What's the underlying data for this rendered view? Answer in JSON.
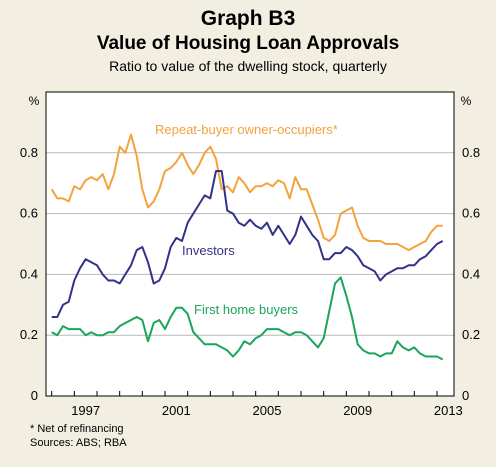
{
  "header": {
    "graph_label": "Graph B3",
    "title": "Value of Housing Loan Approvals",
    "subtitle": "Ratio to value of the dwelling stock, quarterly"
  },
  "footer": {
    "note": "*    Net of refinancing",
    "sources": "Sources: ABS; RBA"
  },
  "colors": {
    "background": "#f3eee2",
    "plot_background": "#ffffff",
    "repeat_buyer": "#f4a23c",
    "investors": "#33318a",
    "first_home": "#17a65a"
  },
  "chart_data": {
    "type": "line",
    "title": "Value of Housing Loan Approvals",
    "subtitle": "Ratio to value of the dwelling stock, quarterly",
    "ylabel_left": "%",
    "ylabel_right": "%",
    "ylim": [
      0,
      1.0
    ],
    "yticks": [
      0,
      0.2,
      0.4,
      0.6,
      0.8
    ],
    "ytick_labels": [
      "0",
      "0.2",
      "0.4",
      "0.6",
      "0.8"
    ],
    "xlim": [
      1995.75,
      2013.75
    ],
    "xticks": [
      1997,
      2001,
      2005,
      2009,
      2013
    ],
    "xtick_labels": [
      "1997",
      "2001",
      "2005",
      "2009",
      "2013"
    ],
    "grid": true,
    "legend": "inline labels",
    "series": [
      {
        "name": "Repeat-buyer owner-occupiers*",
        "color": "#f4a23c",
        "x": [
          1996.0,
          1996.25,
          1996.5,
          1996.75,
          1997.0,
          1997.25,
          1997.5,
          1997.75,
          1998.0,
          1998.25,
          1998.5,
          1998.75,
          1999.0,
          1999.25,
          1999.5,
          1999.75,
          2000.0,
          2000.25,
          2000.5,
          2000.75,
          2001.0,
          2001.25,
          2001.5,
          2001.75,
          2002.0,
          2002.25,
          2002.5,
          2002.75,
          2003.0,
          2003.25,
          2003.5,
          2003.75,
          2004.0,
          2004.25,
          2004.5,
          2004.75,
          2005.0,
          2005.25,
          2005.5,
          2005.75,
          2006.0,
          2006.25,
          2006.5,
          2006.75,
          2007.0,
          2007.25,
          2007.5,
          2007.75,
          2008.0,
          2008.25,
          2008.5,
          2008.75,
          2009.0,
          2009.25,
          2009.5,
          2009.75,
          2010.0,
          2010.25,
          2010.5,
          2010.75,
          2011.0,
          2011.25,
          2011.5,
          2011.75,
          2012.0,
          2012.25,
          2012.5,
          2012.75,
          2013.0,
          2013.25
        ],
        "values": [
          0.68,
          0.65,
          0.65,
          0.64,
          0.69,
          0.68,
          0.71,
          0.72,
          0.71,
          0.73,
          0.68,
          0.73,
          0.82,
          0.8,
          0.86,
          0.79,
          0.68,
          0.62,
          0.64,
          0.68,
          0.74,
          0.75,
          0.77,
          0.8,
          0.76,
          0.73,
          0.76,
          0.8,
          0.82,
          0.78,
          0.68,
          0.69,
          0.67,
          0.72,
          0.7,
          0.67,
          0.69,
          0.69,
          0.7,
          0.69,
          0.71,
          0.7,
          0.65,
          0.72,
          0.68,
          0.68,
          0.63,
          0.58,
          0.52,
          0.51,
          0.53,
          0.6,
          0.61,
          0.62,
          0.56,
          0.52,
          0.51,
          0.51,
          0.51,
          0.5,
          0.5,
          0.5,
          0.49,
          0.48,
          0.49,
          0.5,
          0.51,
          0.54,
          0.56,
          0.56
        ]
      },
      {
        "name": "Investors",
        "color": "#33318a",
        "x": [
          1996.0,
          1996.25,
          1996.5,
          1996.75,
          1997.0,
          1997.25,
          1997.5,
          1997.75,
          1998.0,
          1998.25,
          1998.5,
          1998.75,
          1999.0,
          1999.25,
          1999.5,
          1999.75,
          2000.0,
          2000.25,
          2000.5,
          2000.75,
          2001.0,
          2001.25,
          2001.5,
          2001.75,
          2002.0,
          2002.25,
          2002.5,
          2002.75,
          2003.0,
          2003.25,
          2003.5,
          2003.75,
          2004.0,
          2004.25,
          2004.5,
          2004.75,
          2005.0,
          2005.25,
          2005.5,
          2005.75,
          2006.0,
          2006.25,
          2006.5,
          2006.75,
          2007.0,
          2007.25,
          2007.5,
          2007.75,
          2008.0,
          2008.25,
          2008.5,
          2008.75,
          2009.0,
          2009.25,
          2009.5,
          2009.75,
          2010.0,
          2010.25,
          2010.5,
          2010.75,
          2011.0,
          2011.25,
          2011.5,
          2011.75,
          2012.0,
          2012.25,
          2012.5,
          2012.75,
          2013.0,
          2013.25
        ],
        "values": [
          0.26,
          0.26,
          0.3,
          0.31,
          0.38,
          0.42,
          0.45,
          0.44,
          0.43,
          0.4,
          0.38,
          0.38,
          0.37,
          0.4,
          0.43,
          0.48,
          0.49,
          0.44,
          0.37,
          0.38,
          0.42,
          0.49,
          0.52,
          0.51,
          0.57,
          0.6,
          0.63,
          0.66,
          0.65,
          0.74,
          0.74,
          0.61,
          0.6,
          0.57,
          0.56,
          0.58,
          0.56,
          0.55,
          0.57,
          0.53,
          0.56,
          0.53,
          0.5,
          0.53,
          0.59,
          0.56,
          0.53,
          0.51,
          0.45,
          0.45,
          0.47,
          0.47,
          0.49,
          0.48,
          0.46,
          0.43,
          0.42,
          0.41,
          0.38,
          0.4,
          0.41,
          0.42,
          0.42,
          0.43,
          0.43,
          0.45,
          0.46,
          0.48,
          0.5,
          0.51
        ]
      },
      {
        "name": "First home buyers",
        "color": "#17a65a",
        "x": [
          1996.0,
          1996.25,
          1996.5,
          1996.75,
          1997.0,
          1997.25,
          1997.5,
          1997.75,
          1998.0,
          1998.25,
          1998.5,
          1998.75,
          1999.0,
          1999.25,
          1999.5,
          1999.75,
          2000.0,
          2000.25,
          2000.5,
          2000.75,
          2001.0,
          2001.25,
          2001.5,
          2001.75,
          2002.0,
          2002.25,
          2002.5,
          2002.75,
          2003.0,
          2003.25,
          2003.5,
          2003.75,
          2004.0,
          2004.25,
          2004.5,
          2004.75,
          2005.0,
          2005.25,
          2005.5,
          2005.75,
          2006.0,
          2006.25,
          2006.5,
          2006.75,
          2007.0,
          2007.25,
          2007.5,
          2007.75,
          2008.0,
          2008.25,
          2008.5,
          2008.75,
          2009.0,
          2009.25,
          2009.5,
          2009.75,
          2010.0,
          2010.25,
          2010.5,
          2010.75,
          2011.0,
          2011.25,
          2011.5,
          2011.75,
          2012.0,
          2012.25,
          2012.5,
          2012.75,
          2013.0,
          2013.25
        ],
        "values": [
          0.21,
          0.2,
          0.23,
          0.22,
          0.22,
          0.22,
          0.2,
          0.21,
          0.2,
          0.2,
          0.21,
          0.21,
          0.23,
          0.24,
          0.25,
          0.26,
          0.25,
          0.18,
          0.24,
          0.25,
          0.22,
          0.26,
          0.29,
          0.29,
          0.27,
          0.21,
          0.19,
          0.17,
          0.17,
          0.17,
          0.16,
          0.15,
          0.13,
          0.15,
          0.18,
          0.17,
          0.19,
          0.2,
          0.22,
          0.22,
          0.22,
          0.21,
          0.2,
          0.21,
          0.21,
          0.2,
          0.18,
          0.16,
          0.19,
          0.28,
          0.37,
          0.39,
          0.33,
          0.26,
          0.17,
          0.15,
          0.14,
          0.14,
          0.13,
          0.14,
          0.14,
          0.18,
          0.16,
          0.15,
          0.16,
          0.14,
          0.13,
          0.13,
          0.13,
          0.12
        ]
      }
    ]
  }
}
